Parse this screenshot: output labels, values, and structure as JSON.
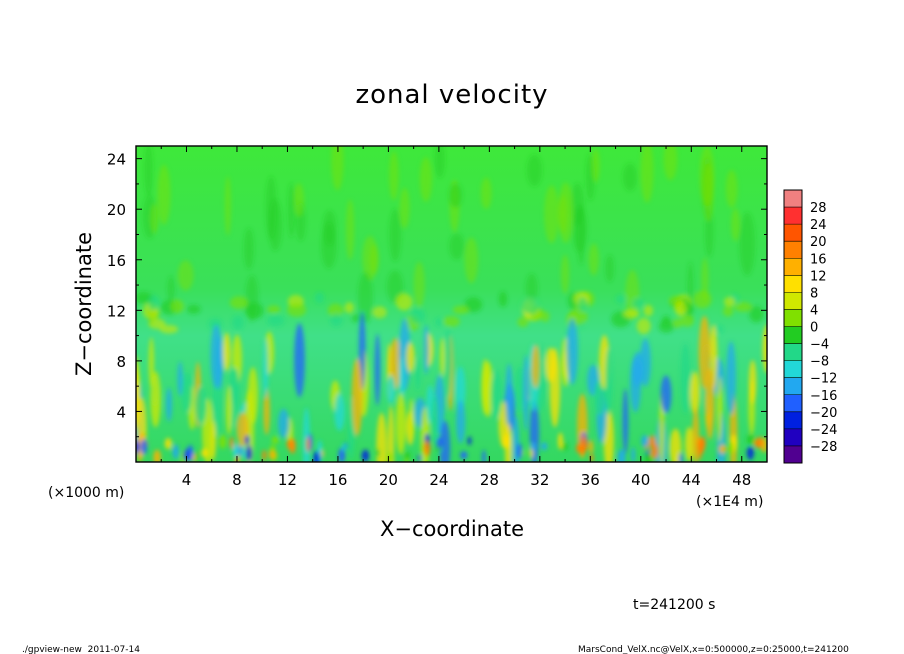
{
  "chart_data": {
    "type": "heatmap",
    "title": "zonal velocity",
    "xlabel": "X−coordinate",
    "ylabel": "Z−coordinate",
    "x_unit_left": "(×1000 m)",
    "x_unit_right": "(×1E4 m)",
    "xlim": [
      0,
      50
    ],
    "ylim": [
      0,
      25
    ],
    "x_ticks": [
      4,
      8,
      12,
      16,
      20,
      24,
      28,
      32,
      36,
      40,
      44,
      48
    ],
    "y_ticks": [
      4,
      8,
      12,
      16,
      20,
      24
    ],
    "x_tick_labels": [
      "4",
      "8",
      "12",
      "16",
      "20",
      "24",
      "28",
      "32",
      "36",
      "40",
      "44",
      "48"
    ],
    "y_tick_labels": [
      "4",
      "8",
      "12",
      "16",
      "20",
      "24"
    ],
    "colorbar": {
      "labels": [
        "28",
        "24",
        "20",
        "16",
        "12",
        "8",
        "4",
        "0",
        "−4",
        "−8",
        "−12",
        "−16",
        "−20",
        "−24",
        "−28"
      ],
      "levels_top_to_bottom": [
        30,
        28,
        24,
        20,
        16,
        12,
        8,
        4,
        0,
        -4,
        -8,
        -12,
        -16,
        -20,
        -24,
        -28,
        -30
      ],
      "colors_top_to_bottom": [
        "#f08080",
        "#ff3030",
        "#ff5500",
        "#ff8000",
        "#ffb000",
        "#ffe000",
        "#d0e800",
        "#80e000",
        "#22cc22",
        "#22d888",
        "#22d8d8",
        "#22a8f0",
        "#2060ff",
        "#0020e0",
        "#2000c0",
        "#500090"
      ]
    },
    "time_label": "t=241200 s",
    "field_description": "Mostly near-zero velocity (green) above 12 km; alternating positive (yellow/orange, up to ~12) and negative (cyan/blue, down to ~−20) cells below ~10 km with strongest values near the surface"
  },
  "footer": {
    "left": "./gpview-new  2011-07-14",
    "right": "MarsCond_VelX.nc@VelX,x=0:500000,z=0:25000,t=241200"
  }
}
